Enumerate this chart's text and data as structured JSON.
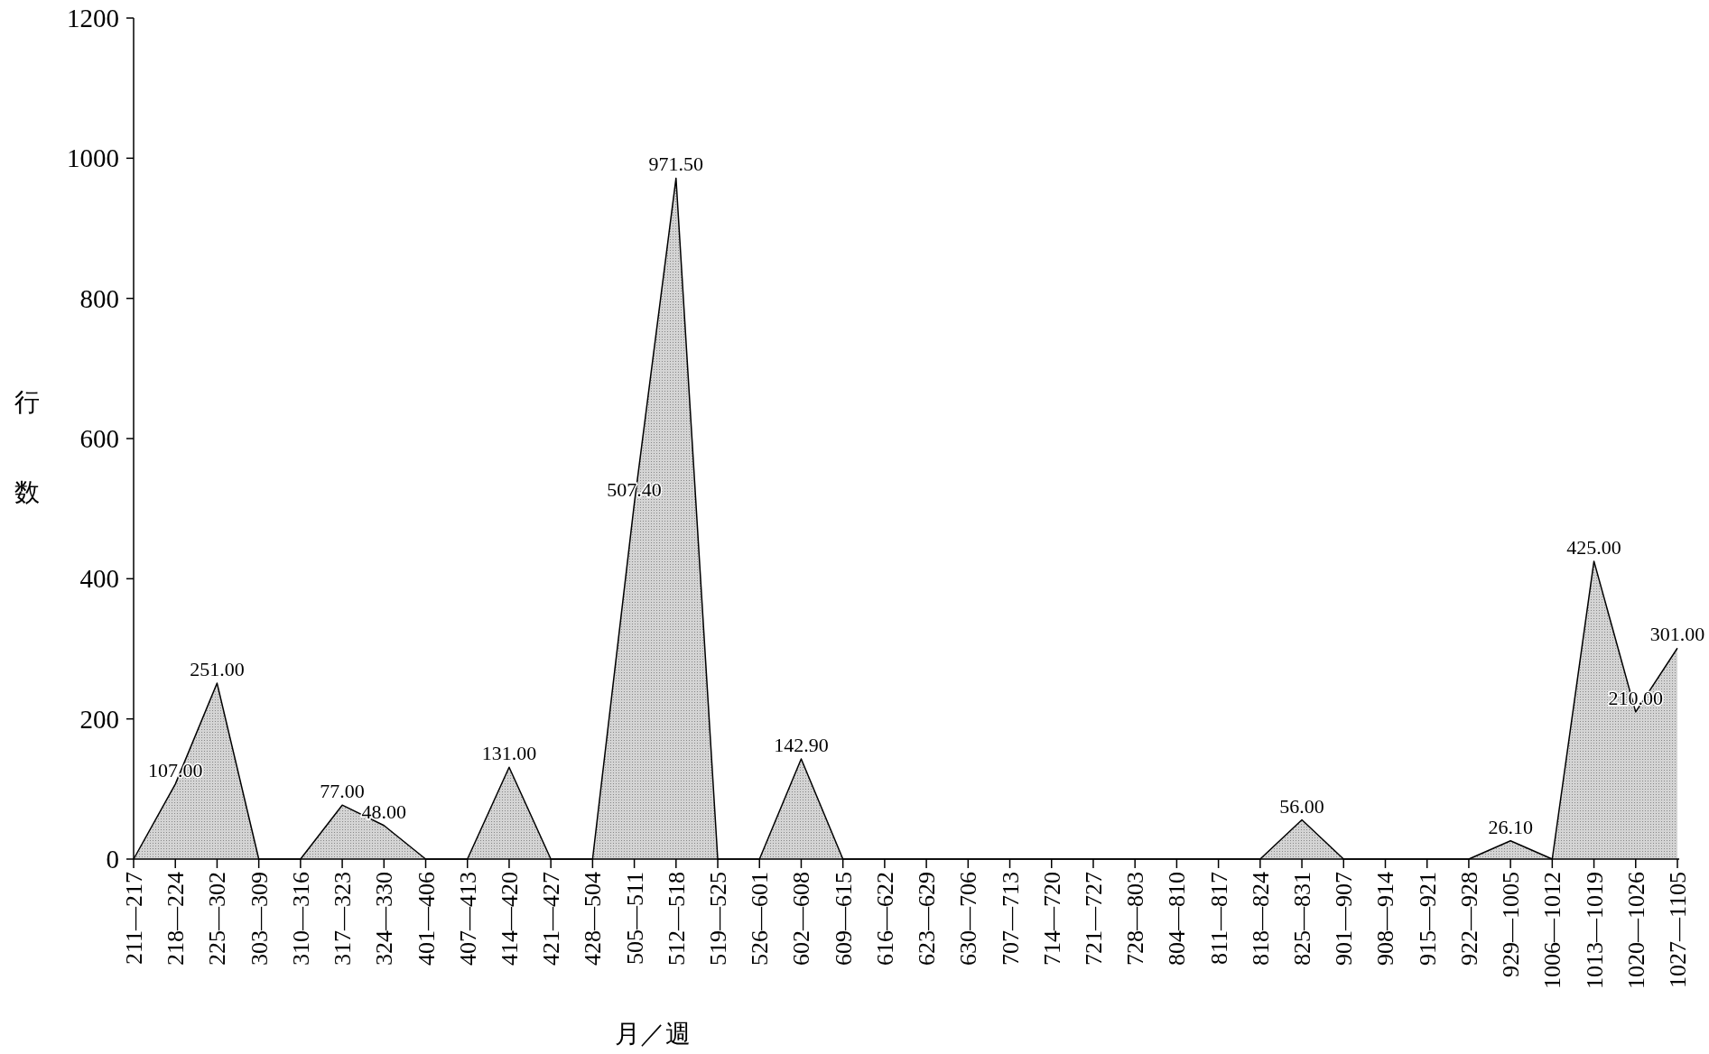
{
  "chart_data": {
    "type": "area",
    "xlabel": "月／週",
    "ylabel": "行数",
    "categories": [
      "211—217",
      "218—224",
      "225—302",
      "303—309",
      "310—316",
      "317—323",
      "324—330",
      "401—406",
      "407—413",
      "414—420",
      "421—427",
      "428—504",
      "505—511",
      "512—518",
      "519—525",
      "526—601",
      "602—608",
      "609—615",
      "616—622",
      "623—629",
      "630—706",
      "707—713",
      "714—720",
      "721—727",
      "728—803",
      "804—810",
      "811—817",
      "818—824",
      "825—831",
      "901—907",
      "908—914",
      "915—921",
      "922—928",
      "929—1005",
      "1006—1012",
      "1013—1019",
      "1020—1026",
      "1027—1105"
    ],
    "values": [
      0,
      107,
      251,
      0,
      0,
      77,
      48,
      0,
      0,
      131,
      0,
      0,
      507.4,
      971.5,
      0,
      0,
      142.9,
      0,
      0,
      0,
      0,
      0,
      0,
      0,
      0,
      0,
      0,
      0,
      56,
      0,
      0,
      0,
      0,
      26.1,
      0,
      425,
      210,
      301
    ],
    "value_labels": [
      null,
      "107.00",
      "251.00",
      null,
      null,
      "77.00",
      "48.00",
      null,
      null,
      "131.00",
      null,
      null,
      "507.40",
      "971.50",
      null,
      null,
      "142.90",
      null,
      null,
      null,
      null,
      null,
      null,
      null,
      null,
      null,
      null,
      null,
      "56.00",
      null,
      null,
      null,
      null,
      "26.10",
      null,
      "425.00",
      "210.00",
      "301.00"
    ],
    "color": "#d4d4d4",
    "ylim": [
      0,
      1200
    ],
    "yticks": [
      0,
      200,
      400,
      600,
      800,
      1000,
      1200
    ]
  }
}
